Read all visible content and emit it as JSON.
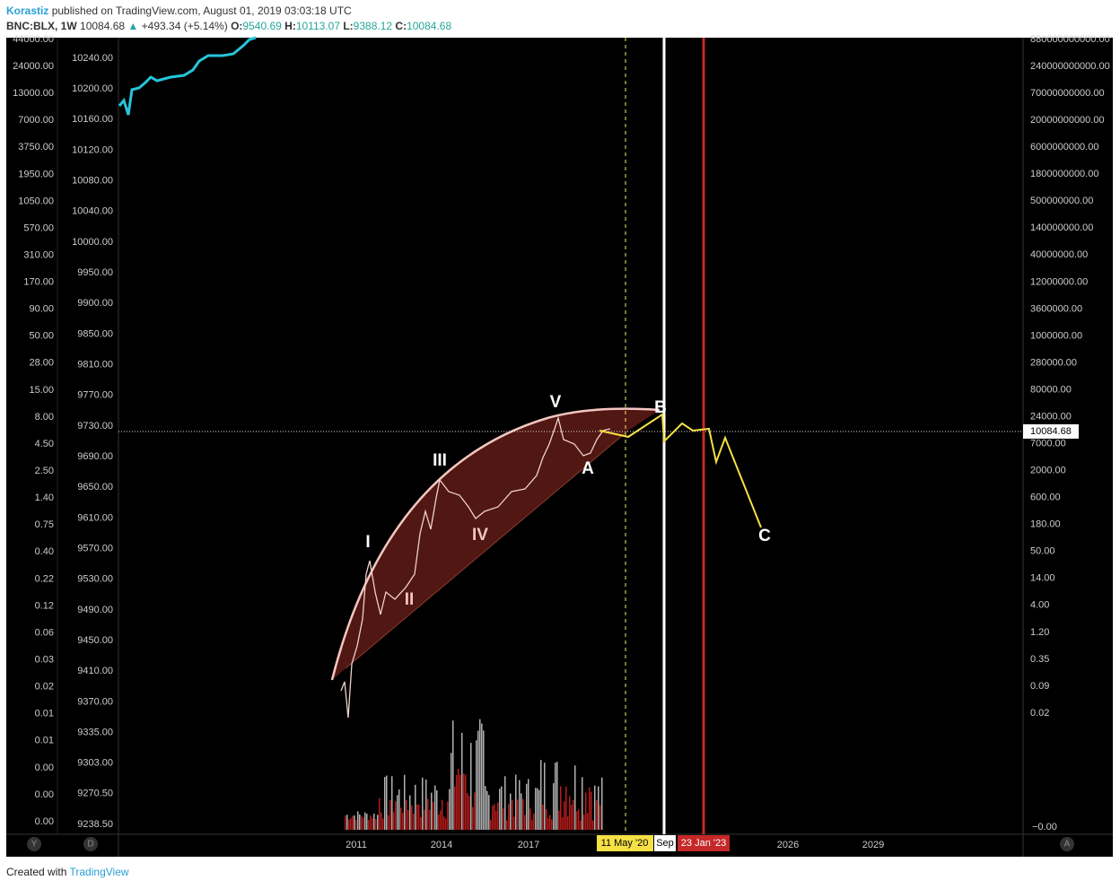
{
  "header": {
    "author": "Korastiz",
    "published": "published on TradingView.com, August 01, 2019 03:03:18 UTC"
  },
  "quote": {
    "symbol": "BNC:BLX, 1W",
    "last": "10084.68",
    "arrow": "▲",
    "change": "+493.34 (+5.14%)",
    "open_label": "O:",
    "open": "9540.69",
    "high_label": "H:",
    "high": "10113.07",
    "low_label": "L:",
    "low": "9388.12",
    "close_label": "C:",
    "close": "10084.68"
  },
  "left_axis_1": [
    "44000.00",
    "24000.00",
    "13000.00",
    "7000.00",
    "3750.00",
    "1950.00",
    "1050.00",
    "570.00",
    "310.00",
    "170.00",
    "90.00",
    "50.00",
    "28.00",
    "15.00",
    "8.00",
    "4.50",
    "2.50",
    "1.40",
    "0.75",
    "0.40",
    "0.22",
    "0.12",
    "0.06",
    "0.03",
    "0.02",
    "0.01",
    "0.01",
    "0.00",
    "0.00",
    "0.00"
  ],
  "left_axis_2": [
    "10240.00",
    "10200.00",
    "10160.00",
    "10120.00",
    "10080.00",
    "10040.00",
    "10000.00",
    "9950.00",
    "9900.00",
    "9850.00",
    "9810.00",
    "9770.00",
    "9730.00",
    "9690.00",
    "9650.00",
    "9610.00",
    "9570.00",
    "9530.00",
    "9490.00",
    "9450.00",
    "9410.00",
    "9370.00",
    "9335.00",
    "9303.00",
    "9270.50",
    "9238.50"
  ],
  "right_axis": [
    "880000000000.00",
    "240000000000.00",
    "70000000000.00",
    "20000000000.00",
    "6000000000.00",
    "1800000000.00",
    "500000000.00",
    "140000000.00",
    "40000000.00",
    "12000000.00",
    "3600000.00",
    "1000000.00",
    "280000.00",
    "80000.00",
    "24000.00",
    "7000.00",
    "2000.00",
    "600.00",
    "180.00",
    "50.00",
    "14.00",
    "4.00",
    "1.20",
    "0.35",
    "0.09",
    "0.02"
  ],
  "right_axis_bottom": "−0.00",
  "price_label": "10084.68",
  "x_axis": {
    "y2011": "2011",
    "y2014": "2014",
    "y2017": "2017",
    "may20": "11 May '20",
    "sep": "Sep",
    "jan23": "23 Jan '23",
    "y2026": "2026",
    "y2029": "2029"
  },
  "waves": {
    "w1": "I",
    "w2": "II",
    "w3": "III",
    "w4": "IV",
    "w5": "V",
    "a": "A",
    "b": "B",
    "c": "C"
  },
  "buttons": {
    "y": "Y",
    "d": "D",
    "a": "A"
  },
  "footer": {
    "created": "Created with",
    "brand": "TradingView"
  }
}
